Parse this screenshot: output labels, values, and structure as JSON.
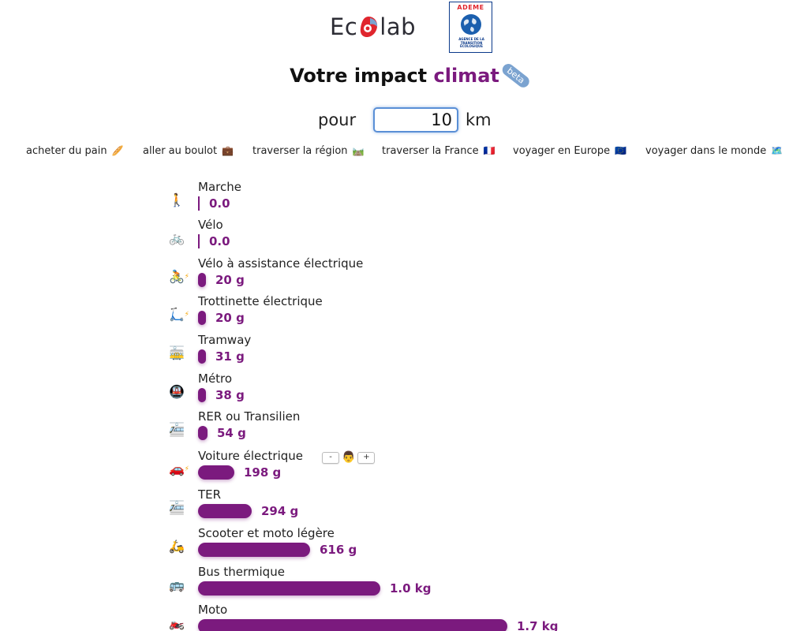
{
  "header": {
    "logo_text_left": "Ec",
    "logo_text_right": "lab",
    "ademe_title": "ADEME",
    "ademe_subtitle": "AGENCE DE LA TRANSITION ÉCOLOGIQUE"
  },
  "title": {
    "prefix": "Votre impact",
    "accent": "climat",
    "badge": "beta"
  },
  "distance": {
    "prefix": "pour",
    "value": "10",
    "unit": "km"
  },
  "presets": [
    {
      "label": "acheter du pain",
      "icon": "🥖"
    },
    {
      "label": "aller au boulot",
      "icon": "💼"
    },
    {
      "label": "traverser la région",
      "icon": "🛤️"
    },
    {
      "label": "traverser la France",
      "icon": "🇫🇷"
    },
    {
      "label": "voyager en Europe",
      "icon": "🇪🇺"
    },
    {
      "label": "voyager dans le monde",
      "icon": "🗺️"
    }
  ],
  "modes": [
    {
      "name": "Marche",
      "value": "0.0",
      "grams": 0,
      "icon": "🚶",
      "electric": false
    },
    {
      "name": "Vélo",
      "value": "0.0",
      "grams": 0,
      "icon": "🚲",
      "electric": false
    },
    {
      "name": "Vélo à assistance électrique",
      "value": "20 g",
      "grams": 20,
      "icon": "🚴",
      "electric": true
    },
    {
      "name": "Trottinette électrique",
      "value": "20 g",
      "grams": 20,
      "icon": "🛴",
      "electric": true
    },
    {
      "name": "Tramway",
      "value": "31 g",
      "grams": 31,
      "icon": "🚋",
      "electric": false
    },
    {
      "name": "Métro",
      "value": "38 g",
      "grams": 38,
      "icon": "🚇",
      "electric": false
    },
    {
      "name": "RER ou Transilien",
      "value": "54 g",
      "grams": 54,
      "icon": "🚈",
      "electric": false
    },
    {
      "name": "Voiture électrique",
      "value": "198 g",
      "grams": 198,
      "icon": "🚗",
      "electric": true,
      "passengers": {
        "minus": "-",
        "plus": "+",
        "face": "👨"
      }
    },
    {
      "name": "TER",
      "value": "294 g",
      "grams": 294,
      "icon": "🚈",
      "electric": false
    },
    {
      "name": "Scooter et moto légère",
      "value": "616 g",
      "grams": 616,
      "icon": "🛵",
      "electric": false
    },
    {
      "name": "Bus thermique",
      "value": "1.0 kg",
      "grams": 1000,
      "icon": "🚌",
      "electric": false
    },
    {
      "name": "Moto",
      "value": "1.7 kg",
      "grams": 1700,
      "icon": "🏍️",
      "electric": false
    }
  ]
}
